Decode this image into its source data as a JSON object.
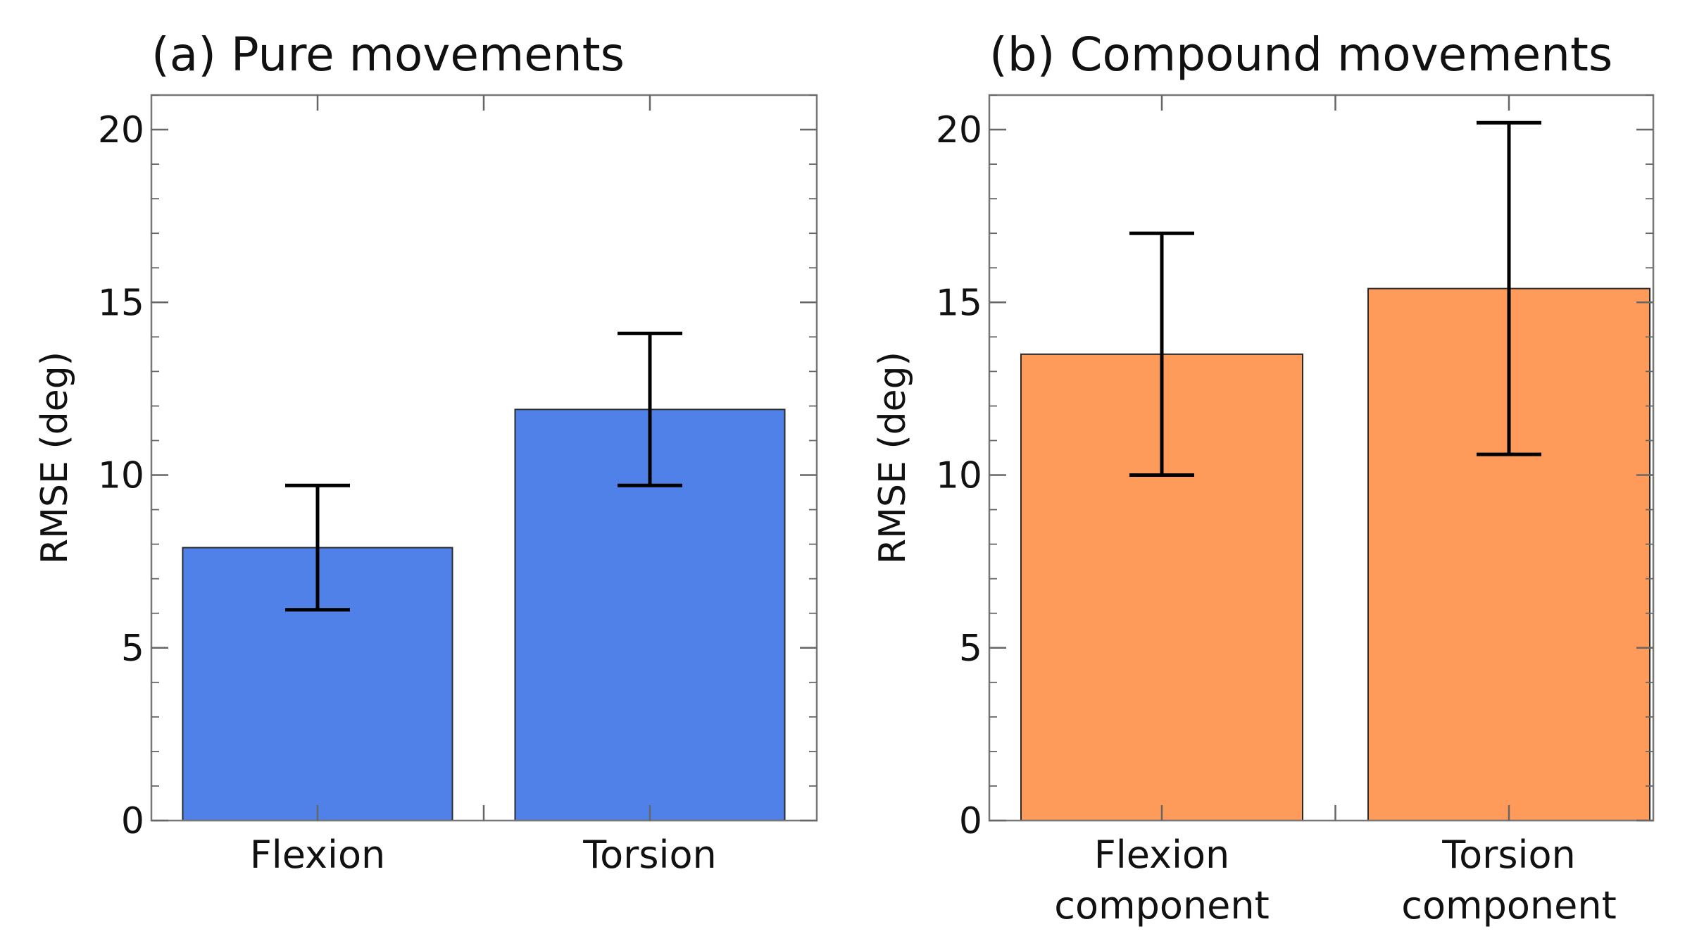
{
  "chart_data": [
    {
      "type": "bar",
      "title": "(a) Pure movements",
      "categories": [
        "Flexion",
        "Torsion"
      ],
      "values": [
        7.9,
        11.9
      ],
      "error_low": [
        6.1,
        9.7
      ],
      "error_high": [
        9.7,
        14.1
      ],
      "ylabel": "RMSE (deg)",
      "xlabel": "",
      "ylim": [
        0,
        21
      ],
      "yticks": [
        0,
        5,
        10,
        15,
        20
      ],
      "ytick_labels": [
        "0",
        "5",
        "10",
        "15",
        "20"
      ],
      "bar_color": "#4f81e8",
      "grid": false
    },
    {
      "type": "bar",
      "title": "(b) Compound movements",
      "categories": [
        "Flexion\ncomponent",
        "Torsion\ncomponent"
      ],
      "values": [
        13.5,
        15.4
      ],
      "error_low": [
        10.0,
        10.6
      ],
      "error_high": [
        17.0,
        20.2
      ],
      "ylabel": "RMSE (deg)",
      "xlabel": "",
      "ylim": [
        0,
        21
      ],
      "yticks": [
        0,
        5,
        10,
        15,
        20
      ],
      "ytick_labels": [
        "0",
        "5",
        "10",
        "15",
        "20"
      ],
      "bar_color": "#fe9a5a",
      "grid": false
    }
  ]
}
